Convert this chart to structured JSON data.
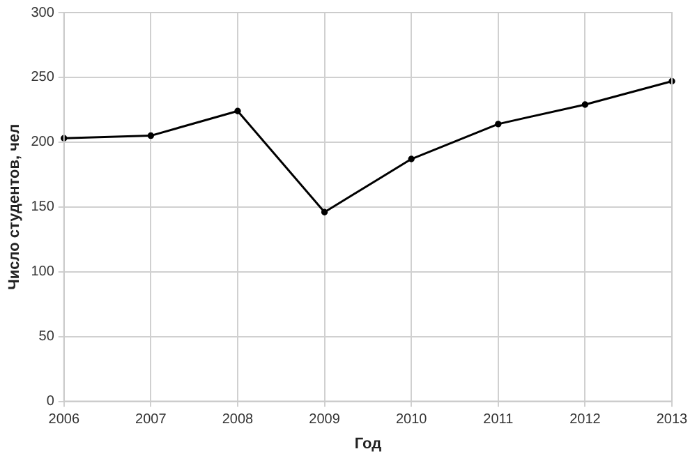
{
  "chart_data": {
    "type": "line",
    "xlabel": "Год",
    "ylabel": "Число студентов, чел",
    "categories": [
      "2006",
      "2007",
      "2008",
      "2009",
      "2010",
      "2011",
      "2012",
      "2013"
    ],
    "series": [
      {
        "color": "#000000",
        "values": [
          203,
          205,
          224,
          146,
          187,
          214,
          229,
          247
        ]
      }
    ],
    "ylim": [
      0,
      300
    ],
    "yticks": [
      0,
      50,
      100,
      150,
      200,
      250,
      300
    ],
    "grid": true,
    "marker": "circle",
    "line_style": "solid"
  }
}
